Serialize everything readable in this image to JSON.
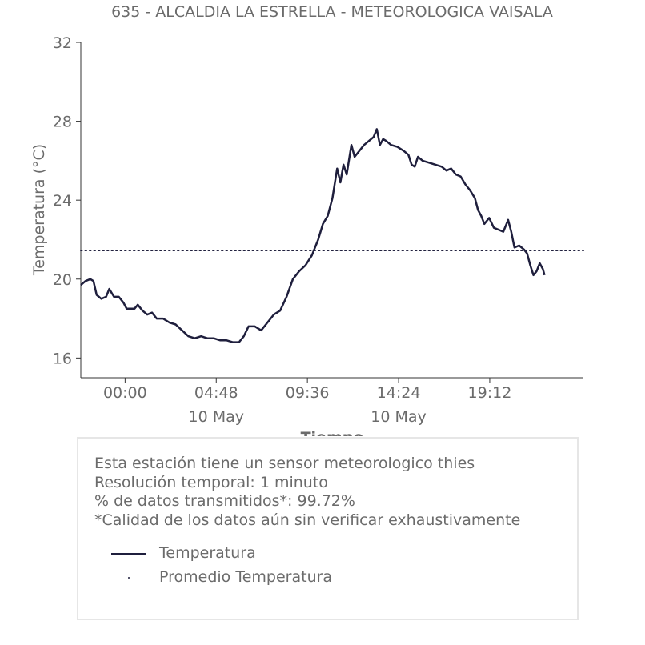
{
  "chart_data": {
    "type": "line",
    "title": "635 - ALCALDIA LA ESTRELLA - METEOROLOGICA VAISALA",
    "xlabel": "Tiempo",
    "ylabel": "Temperatura (°C)",
    "ylim": [
      15,
      32
    ],
    "xlim": [
      "2024-05-09 21:40",
      "2024-05-11 00:08"
    ],
    "y_ticks": [
      16,
      20,
      24,
      28,
      32
    ],
    "x_ticks": [
      {
        "value": "2024-05-10 00:00",
        "label": "00:00",
        "sublabel": ""
      },
      {
        "value": "2024-05-10 04:48",
        "label": "04:48",
        "sublabel": "10 May"
      },
      {
        "value": "2024-05-10 09:36",
        "label": "09:36",
        "sublabel": ""
      },
      {
        "value": "2024-05-10 14:24",
        "label": "14:24",
        "sublabel": "10 May"
      },
      {
        "value": "2024-05-10 19:12",
        "label": "19:12",
        "sublabel": ""
      }
    ],
    "grid": false,
    "series": [
      {
        "name": "Temperatura",
        "color": "#1f1f3d",
        "style": "solid",
        "points": [
          [
            "2024-05-09 21:40",
            19.7
          ],
          [
            "2024-05-09 21:55",
            19.9
          ],
          [
            "2024-05-09 22:10",
            20.0
          ],
          [
            "2024-05-09 22:20",
            19.9
          ],
          [
            "2024-05-09 22:30",
            19.2
          ],
          [
            "2024-05-09 22:45",
            19.0
          ],
          [
            "2024-05-09 23:00",
            19.1
          ],
          [
            "2024-05-09 23:10",
            19.5
          ],
          [
            "2024-05-09 23:25",
            19.1
          ],
          [
            "2024-05-09 23:40",
            19.1
          ],
          [
            "2024-05-09 23:55",
            18.8
          ],
          [
            "2024-05-10 00:05",
            18.5
          ],
          [
            "2024-05-10 00:30",
            18.5
          ],
          [
            "2024-05-10 00:40",
            18.7
          ],
          [
            "2024-05-10 00:55",
            18.4
          ],
          [
            "2024-05-10 01:10",
            18.2
          ],
          [
            "2024-05-10 01:25",
            18.3
          ],
          [
            "2024-05-10 01:40",
            18.0
          ],
          [
            "2024-05-10 02:00",
            18.0
          ],
          [
            "2024-05-10 02:20",
            17.8
          ],
          [
            "2024-05-10 02:40",
            17.7
          ],
          [
            "2024-05-10 03:00",
            17.4
          ],
          [
            "2024-05-10 03:20",
            17.1
          ],
          [
            "2024-05-10 03:40",
            17.0
          ],
          [
            "2024-05-10 04:00",
            17.1
          ],
          [
            "2024-05-10 04:20",
            17.0
          ],
          [
            "2024-05-10 04:40",
            17.0
          ],
          [
            "2024-05-10 05:00",
            16.9
          ],
          [
            "2024-05-10 05:20",
            16.9
          ],
          [
            "2024-05-10 05:40",
            16.8
          ],
          [
            "2024-05-10 06:00",
            16.8
          ],
          [
            "2024-05-10 06:15",
            17.1
          ],
          [
            "2024-05-10 06:30",
            17.6
          ],
          [
            "2024-05-10 06:50",
            17.6
          ],
          [
            "2024-05-10 07:10",
            17.4
          ],
          [
            "2024-05-10 07:30",
            17.8
          ],
          [
            "2024-05-10 07:50",
            18.2
          ],
          [
            "2024-05-10 08:10",
            18.4
          ],
          [
            "2024-05-10 08:30",
            19.1
          ],
          [
            "2024-05-10 08:50",
            20.0
          ],
          [
            "2024-05-10 09:10",
            20.4
          ],
          [
            "2024-05-10 09:30",
            20.7
          ],
          [
            "2024-05-10 09:50",
            21.2
          ],
          [
            "2024-05-10 10:10",
            22.0
          ],
          [
            "2024-05-10 10:25",
            22.8
          ],
          [
            "2024-05-10 10:40",
            23.2
          ],
          [
            "2024-05-10 10:55",
            24.1
          ],
          [
            "2024-05-10 11:10",
            25.6
          ],
          [
            "2024-05-10 11:20",
            24.9
          ],
          [
            "2024-05-10 11:30",
            25.8
          ],
          [
            "2024-05-10 11:40",
            25.3
          ],
          [
            "2024-05-10 11:55",
            26.8
          ],
          [
            "2024-05-10 12:05",
            26.2
          ],
          [
            "2024-05-10 12:20",
            26.5
          ],
          [
            "2024-05-10 12:35",
            26.8
          ],
          [
            "2024-05-10 12:50",
            27.0
          ],
          [
            "2024-05-10 13:05",
            27.2
          ],
          [
            "2024-05-10 13:15",
            27.6
          ],
          [
            "2024-05-10 13:25",
            26.8
          ],
          [
            "2024-05-10 13:35",
            27.1
          ],
          [
            "2024-05-10 13:45",
            27.0
          ],
          [
            "2024-05-10 14:00",
            26.8
          ],
          [
            "2024-05-10 14:20",
            26.7
          ],
          [
            "2024-05-10 14:40",
            26.5
          ],
          [
            "2024-05-10 14:55",
            26.3
          ],
          [
            "2024-05-10 15:05",
            25.8
          ],
          [
            "2024-05-10 15:15",
            25.7
          ],
          [
            "2024-05-10 15:25",
            26.2
          ],
          [
            "2024-05-10 15:40",
            26.0
          ],
          [
            "2024-05-10 16:00",
            25.9
          ],
          [
            "2024-05-10 16:20",
            25.8
          ],
          [
            "2024-05-10 16:40",
            25.7
          ],
          [
            "2024-05-10 16:55",
            25.5
          ],
          [
            "2024-05-10 17:10",
            25.6
          ],
          [
            "2024-05-10 17:25",
            25.3
          ],
          [
            "2024-05-10 17:40",
            25.2
          ],
          [
            "2024-05-10 17:55",
            24.8
          ],
          [
            "2024-05-10 18:10",
            24.5
          ],
          [
            "2024-05-10 18:25",
            24.1
          ],
          [
            "2024-05-10 18:35",
            23.5
          ],
          [
            "2024-05-10 18:45",
            23.2
          ],
          [
            "2024-05-10 18:55",
            22.8
          ],
          [
            "2024-05-10 19:10",
            23.1
          ],
          [
            "2024-05-10 19:25",
            22.6
          ],
          [
            "2024-05-10 19:40",
            22.5
          ],
          [
            "2024-05-10 19:55",
            22.4
          ],
          [
            "2024-05-10 20:05",
            22.8
          ],
          [
            "2024-05-10 20:10",
            23.0
          ],
          [
            "2024-05-10 20:20",
            22.4
          ],
          [
            "2024-05-10 20:30",
            21.6
          ],
          [
            "2024-05-10 20:45",
            21.7
          ],
          [
            "2024-05-10 21:00",
            21.5
          ],
          [
            "2024-05-10 21:10",
            21.3
          ],
          [
            "2024-05-10 21:20",
            20.7
          ],
          [
            "2024-05-10 21:30",
            20.2
          ],
          [
            "2024-05-10 21:40",
            20.4
          ],
          [
            "2024-05-10 21:50",
            20.8
          ],
          [
            "2024-05-10 22:00",
            20.5
          ],
          [
            "2024-05-10 22:05",
            20.2
          ]
        ]
      },
      {
        "name": "Promedio Temperatura",
        "color": "#1f1f3d",
        "style": "dotted",
        "constant": 21.45
      }
    ]
  },
  "info": {
    "line1": "Esta estación tiene un sensor meteorologico thies",
    "line2": "Resolución temporal: 1 minuto",
    "line3": "% de datos transmitidos*: 99.72%",
    "line4": "*Calidad de los datos aún sin verificar exhaustivamente"
  },
  "legend": [
    {
      "label": "Temperatura",
      "style": "solid"
    },
    {
      "label": "Promedio Temperatura",
      "style": "dotted"
    }
  ]
}
